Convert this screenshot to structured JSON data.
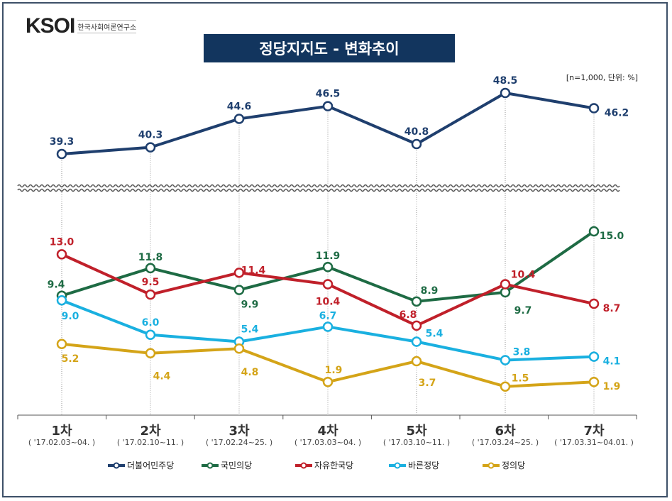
{
  "logo": {
    "mark": "KSOI",
    "sub": "한국사회여론연구소"
  },
  "title": "정당지지도 - 변화추이",
  "note": "[n=1,000, 단위: %]",
  "chart_data": {
    "type": "line",
    "title": "정당지지도 - 변화추이",
    "categories": [
      "1차",
      "2차",
      "3차",
      "4차",
      "5차",
      "6차",
      "7차"
    ],
    "category_dates": [
      "( '17.02.03~04. )",
      "( '17.02.10~11. )",
      "( '17.02.24~25. )",
      "( '17.03.03~04. )",
      "( '17.03.10~11. )",
      "( '17.03.24~25. )",
      "( '17.03.31~04.01. )"
    ],
    "axis_break": true,
    "grid": "vertical dotted",
    "legend": "bottom",
    "series": [
      {
        "name": "더불어민주당",
        "color": "#1f3f6e",
        "values": [
          39.3,
          40.3,
          44.6,
          46.5,
          40.8,
          48.5,
          46.2
        ]
      },
      {
        "name": "국민의당",
        "color": "#1e6b44",
        "values": [
          9.4,
          11.8,
          9.9,
          11.9,
          8.9,
          9.7,
          15.0
        ]
      },
      {
        "name": "자유한국당",
        "color": "#c0202a",
        "values": [
          13.0,
          9.5,
          11.4,
          10.4,
          6.8,
          10.4,
          8.7
        ]
      },
      {
        "name": "바른정당",
        "color": "#1ab0e0",
        "values": [
          9.0,
          6.0,
          5.4,
          6.7,
          5.4,
          3.8,
          4.1
        ]
      },
      {
        "name": "정의당",
        "color": "#d4a418",
        "values": [
          5.2,
          4.4,
          4.8,
          1.9,
          3.7,
          1.5,
          1.9
        ]
      }
    ]
  }
}
